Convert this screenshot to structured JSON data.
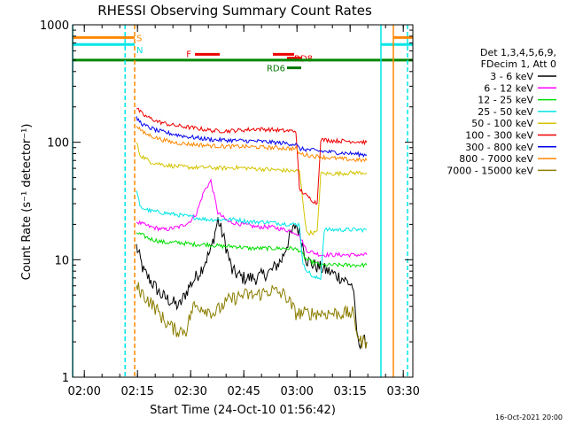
{
  "chart_data": {
    "type": "line",
    "title": "RHESSI Observing Summary Count Rates",
    "xlabel": "Start Time (24-Oct-10 01:56:42)",
    "ylabel": "Count Rate (s⁻¹ detector⁻¹)",
    "footer": "16-Oct-2021 20:00",
    "yscale": "log",
    "ylim": [
      1,
      1000
    ],
    "xlim_minutes": [
      0,
      96
    ],
    "x_ticks": [
      "02:00",
      "02:15",
      "02:30",
      "02:45",
      "03:00",
      "03:15",
      "03:30"
    ],
    "x_tick_minutes": [
      3.3,
      18.3,
      33.3,
      48.3,
      63.3,
      78.3,
      93.3
    ],
    "y_ticks": [
      "1",
      "10",
      "100",
      "1000"
    ],
    "y_tick_values": [
      1,
      10,
      100,
      1000
    ],
    "legend_header": [
      "Det 1,3,4,5,6,9,",
      "FDecim 1, Att 0"
    ],
    "legend_placement": "right",
    "series": [
      {
        "name": "3 - 6 keV",
        "color": "#000000",
        "points": [
          [
            18,
            13
          ],
          [
            20,
            8
          ],
          [
            25,
            5
          ],
          [
            30,
            4
          ],
          [
            33,
            6
          ],
          [
            36,
            8
          ],
          [
            39,
            12
          ],
          [
            41,
            22
          ],
          [
            43,
            14
          ],
          [
            45,
            8
          ],
          [
            48,
            7
          ],
          [
            52,
            7
          ],
          [
            56,
            8
          ],
          [
            59,
            10
          ],
          [
            61,
            15
          ],
          [
            63,
            20
          ],
          [
            64,
            17
          ],
          [
            66,
            10
          ],
          [
            68,
            9
          ],
          [
            72,
            8
          ],
          [
            76,
            7
          ],
          [
            79,
            6
          ],
          [
            80.5,
            2
          ],
          [
            83,
            2
          ]
        ]
      },
      {
        "name": "6 - 12 keV",
        "color": "#ff00ff",
        "points": [
          [
            18,
            21
          ],
          [
            22,
            19
          ],
          [
            26,
            18
          ],
          [
            30,
            19
          ],
          [
            33,
            21
          ],
          [
            35,
            25
          ],
          [
            37,
            38
          ],
          [
            39,
            47
          ],
          [
            41,
            25
          ],
          [
            44,
            21
          ],
          [
            48,
            20
          ],
          [
            52,
            19
          ],
          [
            56,
            19
          ],
          [
            60,
            18
          ],
          [
            63,
            17
          ],
          [
            64,
            16
          ],
          [
            66,
            12
          ],
          [
            70,
            11
          ],
          [
            74,
            11
          ],
          [
            79,
            11
          ],
          [
            83,
            11
          ]
        ]
      },
      {
        "name": "12 - 25 keV",
        "color": "#00dd00",
        "points": [
          [
            18,
            17
          ],
          [
            22,
            15
          ],
          [
            26,
            14
          ],
          [
            30,
            14
          ],
          [
            34,
            13.5
          ],
          [
            38,
            13.5
          ],
          [
            42,
            13
          ],
          [
            46,
            13
          ],
          [
            50,
            12.5
          ],
          [
            54,
            12.5
          ],
          [
            58,
            12.5
          ],
          [
            62,
            12.5
          ],
          [
            64,
            12
          ],
          [
            66,
            10
          ],
          [
            70,
            9
          ],
          [
            74,
            9
          ],
          [
            79,
            9
          ],
          [
            83,
            9
          ]
        ]
      },
      {
        "name": "25 - 50 keV",
        "color": "#00e5e5",
        "points": [
          [
            18,
            40
          ],
          [
            19,
            28
          ],
          [
            22,
            26
          ],
          [
            26,
            25
          ],
          [
            30,
            24
          ],
          [
            34,
            23
          ],
          [
            38,
            22
          ],
          [
            42,
            22
          ],
          [
            46,
            22
          ],
          [
            50,
            21
          ],
          [
            54,
            21
          ],
          [
            58,
            20.5
          ],
          [
            62,
            20
          ],
          [
            64,
            20
          ],
          [
            65,
            9
          ],
          [
            68,
            7
          ],
          [
            70,
            7
          ],
          [
            71,
            18
          ],
          [
            74,
            18
          ],
          [
            79,
            18
          ],
          [
            83,
            18
          ]
        ]
      },
      {
        "name": "50 - 100 keV",
        "color": "#d4c400",
        "points": [
          [
            18,
            100
          ],
          [
            19,
            78
          ],
          [
            22,
            68
          ],
          [
            26,
            64
          ],
          [
            30,
            62
          ],
          [
            34,
            61
          ],
          [
            38,
            61
          ],
          [
            42,
            60
          ],
          [
            46,
            61
          ],
          [
            50,
            60
          ],
          [
            54,
            59
          ],
          [
            58,
            58
          ],
          [
            62,
            57
          ],
          [
            64,
            57
          ],
          [
            66,
            17
          ],
          [
            69,
            17
          ],
          [
            70,
            54
          ],
          [
            74,
            54
          ],
          [
            79,
            55
          ],
          [
            83,
            55
          ]
        ]
      },
      {
        "name": "100 - 300 keV",
        "color": "#ee0000",
        "points": [
          [
            18,
            195
          ],
          [
            20,
            170
          ],
          [
            24,
            150
          ],
          [
            28,
            140
          ],
          [
            32,
            135
          ],
          [
            36,
            130
          ],
          [
            40,
            125
          ],
          [
            44,
            125
          ],
          [
            48,
            127
          ],
          [
            52,
            130
          ],
          [
            56,
            128
          ],
          [
            60,
            125
          ],
          [
            63,
            125
          ],
          [
            64,
            40
          ],
          [
            66,
            35
          ],
          [
            69,
            30
          ],
          [
            70,
            105
          ],
          [
            74,
            103
          ],
          [
            79,
            102
          ],
          [
            83,
            100
          ]
        ]
      },
      {
        "name": "300 - 800 keV",
        "color": "#0000ee",
        "points": [
          [
            18,
            160
          ],
          [
            20,
            140
          ],
          [
            24,
            125
          ],
          [
            28,
            118
          ],
          [
            32,
            112
          ],
          [
            36,
            108
          ],
          [
            40,
            105
          ],
          [
            44,
            104
          ],
          [
            48,
            103
          ],
          [
            52,
            102
          ],
          [
            56,
            100
          ],
          [
            60,
            98
          ],
          [
            63,
            96
          ],
          [
            64,
            88
          ],
          [
            67,
            86
          ],
          [
            70,
            84
          ],
          [
            74,
            82
          ],
          [
            79,
            80
          ],
          [
            83,
            78
          ]
        ]
      },
      {
        "name": "800 - 7000 keV",
        "color": "#ff8800",
        "points": [
          [
            18,
            140
          ],
          [
            20,
            120
          ],
          [
            24,
            108
          ],
          [
            28,
            100
          ],
          [
            32,
            97
          ],
          [
            36,
            95
          ],
          [
            40,
            93
          ],
          [
            44,
            92
          ],
          [
            48,
            92
          ],
          [
            52,
            91
          ],
          [
            56,
            90
          ],
          [
            60,
            89
          ],
          [
            63,
            88
          ],
          [
            64,
            80
          ],
          [
            67,
            77
          ],
          [
            70,
            75
          ],
          [
            74,
            73
          ],
          [
            79,
            71
          ],
          [
            83,
            70
          ]
        ]
      },
      {
        "name": "7000 - 15000 keV",
        "color": "#8b7d00",
        "points": [
          [
            18,
            6
          ],
          [
            20,
            5
          ],
          [
            23,
            4
          ],
          [
            26,
            3
          ],
          [
            29,
            2.5
          ],
          [
            32,
            2.5
          ],
          [
            34,
            4
          ],
          [
            36,
            4
          ],
          [
            40,
            3.5
          ],
          [
            44,
            4.5
          ],
          [
            48,
            5
          ],
          [
            52,
            5
          ],
          [
            56,
            5.5
          ],
          [
            60,
            5
          ],
          [
            63,
            3.5
          ],
          [
            66,
            3.5
          ],
          [
            70,
            3.5
          ],
          [
            74,
            3.5
          ],
          [
            79,
            3.5
          ],
          [
            81,
            2
          ],
          [
            83,
            2
          ]
        ]
      }
    ],
    "flag_bars": [
      {
        "label": "S",
        "color": "#ff8800",
        "y": 780,
        "segments": [
          [
            0,
            17.5
          ],
          [
            90.5,
            96
          ]
        ]
      },
      {
        "label": "N",
        "color": "#00e5e5",
        "y": 680,
        "segments": [
          [
            0,
            17.5
          ],
          [
            87,
            96
          ]
        ]
      },
      {
        "label": "F",
        "color": "#ee0000",
        "y": 560,
        "segments": [
          [
            34.5,
            41.5
          ],
          [
            56.5,
            62.5
          ]
        ]
      },
      {
        "label": "RD6",
        "color": "#007700",
        "y": 430,
        "segments": [
          [
            60.5,
            64.5
          ]
        ]
      },
      {
        "label": "RD8",
        "color": "#ee0000",
        "y": 520,
        "segments": [
          [
            60.5,
            64.5
          ]
        ]
      },
      {
        "color": "#008800",
        "y": 500,
        "segments": [
          [
            0,
            96
          ]
        ]
      }
    ],
    "vertical_markers": [
      {
        "minute": 0,
        "color": "#00e5e5",
        "style": "solid"
      },
      {
        "minute": 14.8,
        "color": "#00e5e5",
        "style": "dashed"
      },
      {
        "minute": 17.5,
        "color": "#ff8800",
        "style": "dashed"
      },
      {
        "minute": 87,
        "color": "#00e5e5",
        "style": "solid"
      },
      {
        "minute": 90.5,
        "color": "#ff8800",
        "style": "solid"
      },
      {
        "minute": 94.5,
        "color": "#00e5e5",
        "style": "dashed"
      }
    ]
  }
}
